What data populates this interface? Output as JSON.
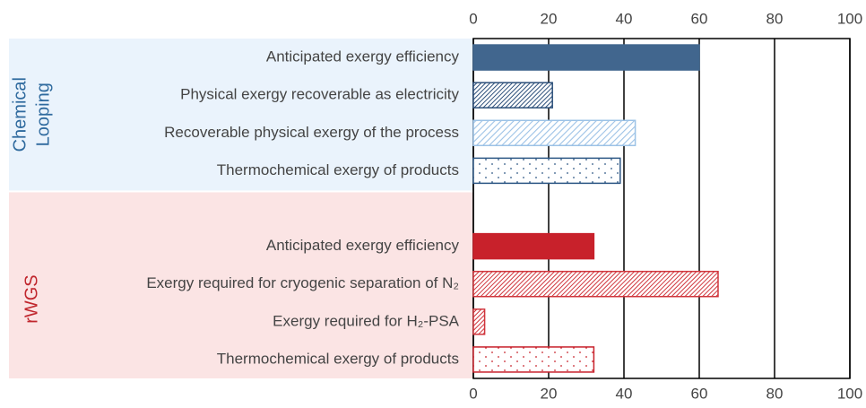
{
  "chart_data": {
    "type": "bar",
    "orientation": "horizontal",
    "xlim": [
      0,
      100
    ],
    "xticks": [
      0,
      20,
      40,
      60,
      80,
      100
    ],
    "grid": true,
    "groups": [
      {
        "name": [
          "Chemical",
          "Looping"
        ],
        "color": "#2f6a9e",
        "background": "#eaf3fc",
        "categories": [
          "Anticipated exergy efficiency",
          "Physical exergy recoverable as electricity",
          "Recoverable physical exergy of the process",
          "Thermochemical exergy of products"
        ],
        "values": [
          60,
          21,
          43,
          39
        ],
        "colors": [
          "#41668e",
          "#2c4f7a",
          "#9cc2e6",
          "#2c5684"
        ],
        "patterns": [
          "solid",
          "hatch-dense",
          "hatch-light",
          "dots"
        ]
      },
      {
        "name": [
          "rWGS"
        ],
        "color": "#c0262d",
        "background": "#fbe4e4",
        "categories": [
          "Anticipated exergy efficiency",
          "Exergy required for cryogenic separation of N₂",
          "Exergy required for H₂-PSA",
          "Thermochemical exergy of products"
        ],
        "values": [
          32,
          65,
          3,
          32
        ],
        "colors": [
          "#c8212b",
          "#d0353c",
          "#d0353c",
          "#c8212b"
        ],
        "patterns": [
          "solid",
          "hatch-dense",
          "hatch-dense",
          "dots"
        ]
      }
    ]
  }
}
